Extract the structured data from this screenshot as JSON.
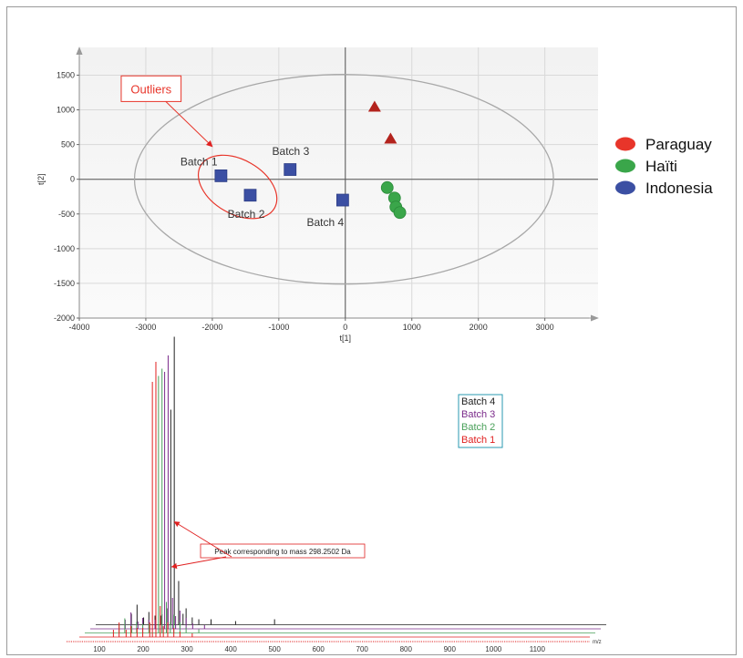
{
  "chart_data": [
    {
      "type": "scatter",
      "xlabel": "t[1]",
      "ylabel": "t[2]",
      "xlim": [
        -4000,
        3800
      ],
      "ylim": [
        -2000,
        1900
      ],
      "x_ticks": [
        -4000,
        -3000,
        -2000,
        -1000,
        0,
        1000,
        2000,
        3000
      ],
      "y_ticks": [
        1500,
        1000,
        500,
        0,
        -500,
        -1000,
        -1500,
        -2000
      ],
      "grid": true,
      "legend_position": "right",
      "series": [
        {
          "name": "Paraguay",
          "color": "#e8352a",
          "marker_color": "#b3231d",
          "marker": "triangle",
          "points": [
            {
              "x": 440,
              "y": 1040
            },
            {
              "x": 680,
              "y": 580
            }
          ]
        },
        {
          "name": "Haïti",
          "color": "#3aa64a",
          "marker_color": "#3aa64a",
          "marker": "circle",
          "points": [
            {
              "x": 630,
              "y": -120
            },
            {
              "x": 740,
              "y": -270
            },
            {
              "x": 760,
              "y": -400
            },
            {
              "x": 820,
              "y": -480
            }
          ]
        },
        {
          "name": "Indonesia",
          "color": "#3b4fa3",
          "marker_color": "#3b4fa3",
          "marker": "square",
          "points": [
            {
              "x": -1870,
              "y": 50
            },
            {
              "x": -1430,
              "y": -230
            },
            {
              "x": -830,
              "y": 140
            },
            {
              "x": -40,
              "y": -300
            }
          ]
        }
      ],
      "confidence_ellipse": {
        "center": [
          -20,
          0
        ],
        "radius_x": 3150,
        "radius_y": 1510,
        "color": "#a8a8a8"
      },
      "annotations": [
        {
          "text": "Batch 1",
          "x": -2480,
          "y": 250
        },
        {
          "text": "Batch 2",
          "x": -1770,
          "y": -500
        },
        {
          "text": "Batch 3",
          "x": -1100,
          "y": 400
        },
        {
          "text": "Batch 4",
          "x": -580,
          "y": -620
        }
      ],
      "callout": {
        "text": "Outliers",
        "color": "#e8352a",
        "box_x": -3370,
        "box_y": 1490,
        "box_w": 900,
        "box_h": 370,
        "arrow_from": [
          -2700,
          1120
        ],
        "arrow_to": [
          -2000,
          470
        ],
        "ellipse_center": [
          -1620,
          -110
        ],
        "ellipse_rx": 640,
        "ellipse_ry": 390,
        "ellipse_angle": 30
      }
    },
    {
      "type": "line",
      "xlabel": "m/z",
      "xlim": [
        25,
        1220
      ],
      "x_ticks": [
        100,
        200,
        300,
        400,
        500,
        600,
        700,
        800,
        900,
        1000,
        1100
      ],
      "legend": {
        "entries": [
          {
            "name": "Batch 4",
            "color": "#202020"
          },
          {
            "name": "Batch 3",
            "color": "#7a2a8a"
          },
          {
            "name": "Batch 2",
            "color": "#4aa05a"
          },
          {
            "name": "Batch 1",
            "color": "#e02020"
          }
        ],
        "border_color": "#2a9ab0"
      },
      "series": [
        {
          "name": "Batch 4",
          "color": "#202020",
          "offset": 3,
          "peaks": [
            [
              173,
              6
            ],
            [
              186,
              11
            ],
            [
              201,
              4
            ],
            [
              213,
              7
            ],
            [
              227,
              5
            ],
            [
              241,
              5
            ],
            [
              256,
              9
            ],
            [
              263,
              118
            ],
            [
              271,
              158
            ],
            [
              281,
              24
            ],
            [
              291,
              6
            ],
            [
              298,
              9
            ],
            [
              312,
              4
            ],
            [
              327,
              3
            ],
            [
              355,
              3
            ],
            [
              411,
              2
            ],
            [
              500,
              3
            ]
          ]
        },
        {
          "name": "Batch 3",
          "color": "#7a2a8a",
          "offset": 2,
          "peaks": [
            [
              159,
              5
            ],
            [
              172,
              9
            ],
            [
              188,
              4
            ],
            [
              199,
              6
            ],
            [
              213,
              5
            ],
            [
              227,
              5
            ],
            [
              243,
              8
            ],
            [
              249,
              141
            ],
            [
              257,
              150
            ],
            [
              267,
              17
            ],
            [
              274,
              7
            ],
            [
              284,
              10
            ],
            [
              298,
              6
            ],
            [
              313,
              3
            ],
            [
              340,
              2
            ]
          ]
        },
        {
          "name": "Batch 2",
          "color": "#4aa05a",
          "offset": 1,
          "peaks": [
            [
              145,
              5
            ],
            [
              158,
              8
            ],
            [
              174,
              4
            ],
            [
              185,
              6
            ],
            [
              199,
              5
            ],
            [
              213,
              5
            ],
            [
              229,
              8
            ],
            [
              235,
              141
            ],
            [
              243,
              145
            ],
            [
              253,
              17
            ],
            [
              262,
              6
            ],
            [
              270,
              10
            ],
            [
              284,
              6
            ],
            [
              298,
              3
            ],
            [
              327,
              2
            ]
          ]
        },
        {
          "name": "Batch 1",
          "color": "#e02020",
          "offset": 0,
          "peaks": [
            [
              132,
              4
            ],
            [
              145,
              8
            ],
            [
              161,
              4
            ],
            [
              172,
              6
            ],
            [
              186,
              5
            ],
            [
              199,
              5
            ],
            [
              215,
              8
            ],
            [
              221,
              140
            ],
            [
              229,
              151
            ],
            [
              239,
              17
            ],
            [
              246,
              6
            ],
            [
              256,
              8
            ],
            [
              270,
              5
            ],
            [
              284,
              3
            ],
            [
              312,
              2
            ]
          ]
        }
      ],
      "annotation": {
        "text": "Peak corresponding to mass 298.2502 Da",
        "color": "#e02020",
        "arrow_targets": [
          [
            265,
            0,
            36
          ],
          [
            271,
            3,
            54
          ]
        ]
      }
    }
  ]
}
